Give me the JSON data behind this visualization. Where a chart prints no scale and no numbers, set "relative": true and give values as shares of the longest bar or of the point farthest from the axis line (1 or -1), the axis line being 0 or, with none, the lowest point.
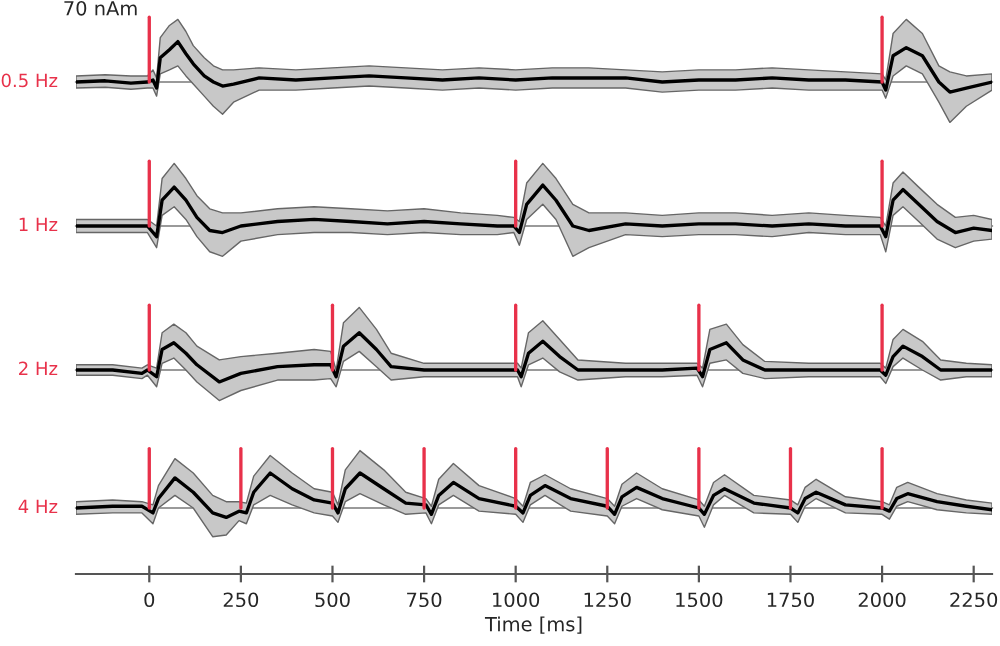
{
  "chart_data": [
    {
      "type": "line",
      "ylabel": "0.5 Hz",
      "relative": true,
      "xlim": [
        -200,
        2300
      ],
      "tick_labels": false,
      "legend": false,
      "annotations": [
        "70 nAm"
      ],
      "ref_lines": [
        {
          "axis": "x",
          "value": 0,
          "color": "#e8314a"
        },
        {
          "axis": "x",
          "value": 2000,
          "color": "#e8314a"
        }
      ],
      "series": [
        {
          "color": "#000000",
          "x": [
            -200,
            -120,
            -50,
            -5,
            10,
            20,
            30,
            55,
            78,
            100,
            120,
            150,
            175,
            200,
            230,
            300,
            400,
            500,
            600,
            700,
            800,
            900,
            1000,
            1100,
            1200,
            1300,
            1400,
            1500,
            1600,
            1700,
            1800,
            1900,
            2000,
            2010,
            2030,
            2066,
            2110,
            2155,
            2185,
            2230,
            2300
          ],
          "values": [
            0,
            0.03,
            -0.03,
            0,
            0.05,
            -0.15,
            0.6,
            0.8,
            1,
            0.7,
            0.45,
            0.15,
            0,
            -0.1,
            -0.05,
            0.1,
            0.05,
            0.1,
            0.15,
            0.1,
            0.05,
            0.1,
            0.05,
            0.1,
            0.1,
            0.1,
            0,
            0.05,
            0.05,
            0.1,
            0.05,
            0.05,
            0,
            -0.2,
            0.65,
            0.85,
            0.65,
            0,
            -0.25,
            -0.15,
            0
          ],
          "lower": [
            -0.15,
            -0.13,
            -0.18,
            -0.15,
            -0.15,
            -0.35,
            0.2,
            0.3,
            0.4,
            0.15,
            -0.05,
            -0.35,
            -0.6,
            -0.8,
            -0.5,
            -0.2,
            -0.2,
            -0.15,
            -0.1,
            -0.15,
            -0.2,
            -0.15,
            -0.2,
            -0.15,
            -0.15,
            -0.15,
            -0.25,
            -0.2,
            -0.2,
            -0.15,
            -0.2,
            -0.2,
            -0.2,
            -0.4,
            0.15,
            0.4,
            0.2,
            -0.5,
            -1,
            -0.6,
            -0.2
          ],
          "upper": [
            0.15,
            0.18,
            0.15,
            0.15,
            0.3,
            0.1,
            1.1,
            1.4,
            1.55,
            1.25,
            0.9,
            0.6,
            0.4,
            0.3,
            0.3,
            0.35,
            0.3,
            0.35,
            0.4,
            0.35,
            0.3,
            0.35,
            0.3,
            0.35,
            0.35,
            0.3,
            0.25,
            0.3,
            0.3,
            0.35,
            0.3,
            0.25,
            0.2,
            0.05,
            1.2,
            1.55,
            1.2,
            0.4,
            0.25,
            0.15,
            0.2
          ]
        }
      ]
    },
    {
      "type": "line",
      "ylabel": "1 Hz",
      "relative": true,
      "xlim": [
        -200,
        2300
      ],
      "tick_labels": false,
      "legend": false,
      "ref_lines": [
        {
          "axis": "x",
          "value": 0,
          "color": "#e8314a"
        },
        {
          "axis": "x",
          "value": 1000,
          "color": "#e8314a"
        },
        {
          "axis": "x",
          "value": 2000,
          "color": "#e8314a"
        }
      ],
      "series": [
        {
          "color": "#000000",
          "x": [
            -200,
            -100,
            -5,
            20,
            35,
            68,
            100,
            130,
            165,
            200,
            250,
            350,
            450,
            550,
            650,
            750,
            850,
            950,
            995,
            1010,
            1030,
            1074,
            1110,
            1156,
            1200,
            1300,
            1400,
            1500,
            1600,
            1700,
            1800,
            1900,
            1995,
            2010,
            2030,
            2057,
            2100,
            2150,
            2200,
            2250,
            2300
          ],
          "values": [
            0,
            0,
            0,
            -0.26,
            0.63,
            0.95,
            0.63,
            0.21,
            -0.11,
            -0.16,
            0,
            0.11,
            0.16,
            0.11,
            0.05,
            0.11,
            0.05,
            0,
            0,
            -0.16,
            0.53,
            1,
            0.63,
            0,
            -0.11,
            0.05,
            0,
            0.05,
            0.05,
            0,
            0.05,
            0,
            0,
            -0.26,
            0.63,
            0.89,
            0.53,
            0.11,
            -0.16,
            -0.05,
            -0.11
          ],
          "lower": [
            -0.16,
            -0.16,
            -0.16,
            -0.53,
            0.26,
            0.47,
            0.16,
            -0.26,
            -0.63,
            -0.74,
            -0.37,
            -0.21,
            -0.16,
            -0.16,
            -0.21,
            -0.16,
            -0.21,
            -0.21,
            -0.16,
            -0.47,
            0.16,
            0.53,
            0.16,
            -0.74,
            -0.53,
            -0.21,
            -0.26,
            -0.21,
            -0.21,
            -0.26,
            -0.16,
            -0.21,
            -0.21,
            -0.63,
            0.26,
            0.47,
            0.11,
            -0.32,
            -0.53,
            -0.37,
            -0.32
          ],
          "upper": [
            0.16,
            0.16,
            0.16,
            0,
            1.16,
            1.53,
            1.16,
            0.74,
            0.42,
            0.32,
            0.32,
            0.42,
            0.47,
            0.42,
            0.37,
            0.42,
            0.32,
            0.26,
            0.21,
            0.11,
            1.05,
            1.53,
            1.16,
            0.53,
            0.32,
            0.32,
            0.26,
            0.32,
            0.32,
            0.26,
            0.32,
            0.26,
            0.21,
            0,
            1.05,
            1.32,
            0.95,
            0.53,
            0.21,
            0.26,
            0.16
          ]
        }
      ]
    },
    {
      "type": "line",
      "ylabel": "2 Hz",
      "relative": true,
      "xlim": [
        -200,
        2300
      ],
      "tick_labels": false,
      "legend": false,
      "ref_lines": [
        {
          "axis": "x",
          "value": 0,
          "color": "#e8314a"
        },
        {
          "axis": "x",
          "value": 500,
          "color": "#e8314a"
        },
        {
          "axis": "x",
          "value": 1000,
          "color": "#e8314a"
        },
        {
          "axis": "x",
          "value": 1500,
          "color": "#e8314a"
        },
        {
          "axis": "x",
          "value": 2000,
          "color": "#e8314a"
        }
      ],
      "series": [
        {
          "color": "#000000",
          "x": [
            -200,
            -100,
            -20,
            -5,
            20,
            35,
            67,
            100,
            130,
            191,
            250,
            350,
            450,
            495,
            510,
            530,
            573,
            620,
            660,
            750,
            850,
            950,
            1005,
            1015,
            1035,
            1074,
            1120,
            1170,
            1300,
            1400,
            1495,
            1510,
            1530,
            1575,
            1620,
            1680,
            1800,
            1900,
            1995,
            2010,
            2030,
            2057,
            2110,
            2160,
            2230,
            2300
          ],
          "values": [
            0,
            0,
            -0.09,
            0,
            -0.18,
            0.55,
            0.73,
            0.45,
            0.14,
            -0.32,
            -0.09,
            0.09,
            0.14,
            0.14,
            -0.18,
            0.64,
            1,
            0.55,
            0.09,
            0,
            0,
            0,
            0,
            -0.18,
            0.45,
            0.77,
            0.36,
            0,
            0,
            0,
            0.05,
            -0.18,
            0.55,
            0.73,
            0.27,
            0,
            0,
            0,
            0,
            -0.14,
            0.36,
            0.64,
            0.36,
            0,
            0,
            0
          ],
          "lower": [
            -0.14,
            -0.14,
            -0.23,
            -0.14,
            -0.45,
            0.18,
            0.32,
            0,
            -0.32,
            -0.82,
            -0.55,
            -0.27,
            -0.27,
            -0.23,
            -0.45,
            0.23,
            0.5,
            0.09,
            -0.27,
            -0.18,
            -0.18,
            -0.18,
            -0.18,
            -0.45,
            0.14,
            0.32,
            -0.05,
            -0.27,
            -0.18,
            -0.18,
            -0.14,
            -0.45,
            0.18,
            0.27,
            -0.09,
            -0.23,
            -0.18,
            -0.18,
            -0.18,
            -0.36,
            0.09,
            0.32,
            0,
            -0.27,
            -0.18,
            -0.18
          ],
          "upper": [
            0.14,
            0.14,
            0.05,
            0.14,
            0.05,
            1,
            1.23,
            1,
            0.64,
            0.27,
            0.36,
            0.45,
            0.55,
            0.5,
            0,
            1.27,
            1.68,
            1.09,
            0.45,
            0.18,
            0.18,
            0.18,
            0.18,
            0.05,
            1,
            1.32,
            0.82,
            0.27,
            0.18,
            0.18,
            0.18,
            0.05,
            1.09,
            1.23,
            0.68,
            0.23,
            0.18,
            0.18,
            0.18,
            0.05,
            0.82,
            1.09,
            0.77,
            0.27,
            0.18,
            0.14
          ]
        }
      ]
    },
    {
      "type": "line",
      "ylabel": "4 Hz",
      "xlabel": "Time [ms]",
      "relative": true,
      "xlim": [
        -200,
        2300
      ],
      "xticks": [
        0,
        250,
        500,
        750,
        1000,
        1250,
        1500,
        1750,
        2000,
        2250
      ],
      "tick_labels": "x",
      "legend": false,
      "ref_lines": [
        {
          "axis": "x",
          "value": 0,
          "color": "#e8314a"
        },
        {
          "axis": "x",
          "value": 250,
          "color": "#e8314a"
        },
        {
          "axis": "x",
          "value": 500,
          "color": "#e8314a"
        },
        {
          "axis": "x",
          "value": 750,
          "color": "#e8314a"
        },
        {
          "axis": "x",
          "value": 1000,
          "color": "#e8314a"
        },
        {
          "axis": "x",
          "value": 1250,
          "color": "#e8314a"
        },
        {
          "axis": "x",
          "value": 1500,
          "color": "#e8314a"
        },
        {
          "axis": "x",
          "value": 1750,
          "color": "#e8314a"
        },
        {
          "axis": "x",
          "value": 2000,
          "color": "#e8314a"
        }
      ],
      "series": [
        {
          "color": "#000000",
          "x": [
            -200,
            -100,
            -20,
            10,
            25,
            70,
            120,
            173,
            210,
            245,
            265,
            285,
            330,
            390,
            450,
            500,
            515,
            535,
            575,
            640,
            700,
            755,
            770,
            790,
            830,
            900,
            1000,
            1020,
            1040,
            1080,
            1150,
            1250,
            1270,
            1290,
            1330,
            1400,
            1500,
            1515,
            1540,
            1570,
            1650,
            1750,
            1770,
            1790,
            1820,
            1900,
            2000,
            2020,
            2040,
            2070,
            2150,
            2230,
            2300
          ],
          "values": [
            0,
            0.05,
            0.05,
            -0.14,
            0.27,
            0.86,
            0.45,
            -0.14,
            -0.27,
            -0.09,
            -0.14,
            0.45,
            1,
            0.55,
            0.23,
            0.14,
            -0.14,
            0.55,
            1,
            0.55,
            0.14,
            0.09,
            -0.18,
            0.36,
            0.73,
            0.27,
            0.05,
            -0.14,
            0.36,
            0.64,
            0.27,
            0.05,
            -0.18,
            0.32,
            0.59,
            0.27,
            0,
            -0.18,
            0.36,
            0.55,
            0.14,
            0,
            -0.14,
            0.27,
            0.45,
            0.09,
            0,
            -0.09,
            0.27,
            0.41,
            0.18,
            0.05,
            -0.05
          ],
          "lower": [
            -0.18,
            -0.14,
            -0.14,
            -0.45,
            0,
            0.36,
            0,
            -0.82,
            -0.77,
            -0.36,
            -0.45,
            0.09,
            0.36,
            0.09,
            -0.14,
            -0.23,
            -0.41,
            0.18,
            0.41,
            0.09,
            -0.18,
            -0.14,
            -0.45,
            0.09,
            0.36,
            -0.09,
            -0.18,
            -0.41,
            0.09,
            0.36,
            -0.09,
            -0.23,
            -0.45,
            0.05,
            0.27,
            -0.05,
            -0.23,
            -0.55,
            0.09,
            0.36,
            -0.14,
            -0.18,
            -0.41,
            0.05,
            0.27,
            -0.14,
            -0.18,
            -0.32,
            0.05,
            0.18,
            -0.05,
            -0.14,
            -0.18
          ],
          "upper": [
            0.18,
            0.23,
            0.18,
            0.09,
            0.64,
            1.41,
            1,
            0.36,
            0.18,
            0.18,
            0.14,
            0.91,
            1.5,
            1,
            0.55,
            0.45,
            0.09,
            1.09,
            1.64,
            1.09,
            0.45,
            0.27,
            0.05,
            0.82,
            1.27,
            0.64,
            0.27,
            0.05,
            0.73,
            0.95,
            0.55,
            0.27,
            0.05,
            0.68,
            1,
            0.55,
            0.23,
            0.05,
            0.73,
            0.95,
            0.36,
            0.23,
            0.09,
            0.59,
            0.82,
            0.32,
            0.18,
            0.09,
            0.59,
            0.73,
            0.41,
            0.23,
            0.14
          ]
        }
      ]
    }
  ]
}
